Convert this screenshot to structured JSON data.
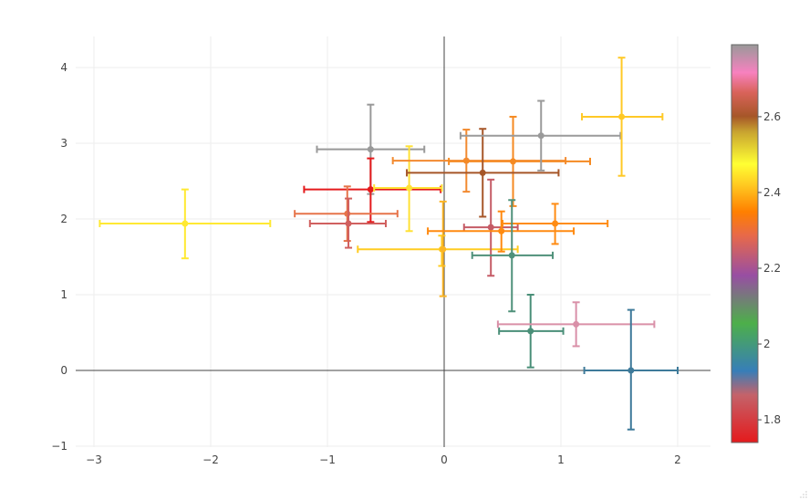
{
  "chart_data": {
    "type": "scatter",
    "title": "",
    "xlabel": "",
    "ylabel": "",
    "xlim": [
      -3.15,
      2.28
    ],
    "ylim": [
      -1.02,
      4.4
    ],
    "grid": true,
    "x_ticks": [
      -3,
      -2,
      -1,
      0,
      1,
      2
    ],
    "x_tick_labels": [
      "−3",
      "−2",
      "−1",
      "0",
      "1",
      "2"
    ],
    "y_ticks": [
      -1,
      0,
      1,
      2,
      3,
      4
    ],
    "y_tick_labels": [
      "−1",
      "0",
      "1",
      "2",
      "3",
      "4"
    ],
    "colorbar": {
      "min": 1.74,
      "max": 2.79,
      "ticks": [
        1.8,
        2.0,
        2.2,
        2.4,
        2.6
      ],
      "tick_labels": [
        "1.8",
        "2",
        "2.2",
        "2.4",
        "2.6"
      ],
      "colorscale": [
        [
          0.0,
          "#e41a1c"
        ],
        [
          0.12,
          "#c4636a"
        ],
        [
          0.18,
          "#377eb8"
        ],
        [
          0.3,
          "#4daf4a"
        ],
        [
          0.42,
          "#984ea3"
        ],
        [
          0.52,
          "#e7694a"
        ],
        [
          0.58,
          "#ff7f00"
        ],
        [
          0.65,
          "#ffcc22"
        ],
        [
          0.7,
          "#ffff33"
        ],
        [
          0.78,
          "#c9a530"
        ],
        [
          0.82,
          "#a65628"
        ],
        [
          0.88,
          "#d9635a"
        ],
        [
          0.93,
          "#f781bf"
        ],
        [
          1.0,
          "#999999"
        ]
      ]
    },
    "points": [
      {
        "x": -2.22,
        "y": 1.94,
        "x_minus": 0.73,
        "x_plus": 0.73,
        "y_minus": 0.46,
        "y_plus": 0.45,
        "color_value": 2.4,
        "color": "#ffe933"
      },
      {
        "x": -0.63,
        "y": 2.92,
        "x_minus": 0.46,
        "x_plus": 0.46,
        "y_minus": 0.59,
        "y_plus": 0.59,
        "color_value": 2.78,
        "color": "#999999"
      },
      {
        "x": -0.63,
        "y": 2.39,
        "x_minus": 0.57,
        "x_plus": 0.6,
        "y_minus": 0.43,
        "y_plus": 0.41,
        "color_value": 1.75,
        "color": "#e41a1c"
      },
      {
        "x": -0.3,
        "y": 2.41,
        "x_minus": 0.3,
        "x_plus": 0.28,
        "y_minus": 0.57,
        "y_plus": 0.55,
        "color_value": 2.4,
        "color": "#ffe135"
      },
      {
        "x": -0.83,
        "y": 2.07,
        "x_minus": 0.45,
        "x_plus": 0.43,
        "y_minus": 0.36,
        "y_plus": 0.36,
        "color_value": 2.24,
        "color": "#e6744a"
      },
      {
        "x": -0.82,
        "y": 1.94,
        "x_minus": 0.33,
        "x_plus": 0.32,
        "y_minus": 0.32,
        "y_plus": 0.33,
        "color_value": 1.8,
        "color": "#d0605f"
      },
      {
        "x": -0.02,
        "y": 1.6,
        "x_minus": 0.72,
        "x_plus": 0.65,
        "y_minus": 0.22,
        "y_plus": 0.18,
        "color_value": 2.36,
        "color": "#ffcc22"
      },
      {
        "x": -0.01,
        "y": 1.6,
        "x_minus": 0.0,
        "x_plus": 0.0,
        "y_minus": 0.62,
        "y_plus": 0.63,
        "color_value": 2.33,
        "color": "#fbb526"
      },
      {
        "x": 0.19,
        "y": 2.77,
        "x_minus": 0.63,
        "x_plus": 0.85,
        "y_minus": 0.41,
        "y_plus": 0.41,
        "color_value": 2.27,
        "color": "#f28a30"
      },
      {
        "x": 0.59,
        "y": 2.76,
        "x_minus": 0.55,
        "x_plus": 0.66,
        "y_minus": 0.59,
        "y_plus": 0.59,
        "color_value": 2.29,
        "color": "#f58a22"
      },
      {
        "x": 0.33,
        "y": 2.61,
        "x_minus": 0.65,
        "x_plus": 0.65,
        "y_minus": 0.58,
        "y_plus": 0.58,
        "color_value": 2.52,
        "color": "#a65628"
      },
      {
        "x": 0.83,
        "y": 3.1,
        "x_minus": 0.69,
        "x_plus": 0.68,
        "y_minus": 0.46,
        "y_plus": 0.46,
        "color_value": 2.78,
        "color": "#9a9a9a"
      },
      {
        "x": 1.52,
        "y": 3.35,
        "x_minus": 0.34,
        "x_plus": 0.35,
        "y_minus": 0.78,
        "y_plus": 0.78,
        "color_value": 2.36,
        "color": "#ffc926"
      },
      {
        "x": 0.4,
        "y": 1.89,
        "x_minus": 0.23,
        "x_plus": 0.23,
        "y_minus": 0.64,
        "y_plus": 0.63,
        "color_value": 1.8,
        "color": "#c55b66"
      },
      {
        "x": 0.49,
        "y": 1.84,
        "x_minus": 0.63,
        "x_plus": 0.62,
        "y_minus": 0.27,
        "y_plus": 0.26,
        "color_value": 2.3,
        "color": "#ff8a10"
      },
      {
        "x": 0.95,
        "y": 1.94,
        "x_minus": 0.45,
        "x_plus": 0.45,
        "y_minus": 0.27,
        "y_plus": 0.26,
        "color_value": 2.3,
        "color": "#ff8c14"
      },
      {
        "x": 0.58,
        "y": 1.52,
        "x_minus": 0.34,
        "x_plus": 0.35,
        "y_minus": 0.74,
        "y_plus": 0.73,
        "color_value": 1.93,
        "color": "#4f917a"
      },
      {
        "x": 0.74,
        "y": 0.52,
        "x_minus": 0.27,
        "x_plus": 0.28,
        "y_minus": 0.48,
        "y_plus": 0.48,
        "color_value": 1.93,
        "color": "#4a8f78"
      },
      {
        "x": 1.13,
        "y": 0.61,
        "x_minus": 0.67,
        "x_plus": 0.67,
        "y_minus": 0.29,
        "y_plus": 0.29,
        "color_value": 2.7,
        "color": "#d990a8"
      },
      {
        "x": 1.6,
        "y": 0.0,
        "x_minus": 0.4,
        "x_plus": 0.4,
        "y_minus": 0.78,
        "y_plus": 0.8,
        "color_value": 1.84,
        "color": "#3e7a9a"
      }
    ]
  }
}
